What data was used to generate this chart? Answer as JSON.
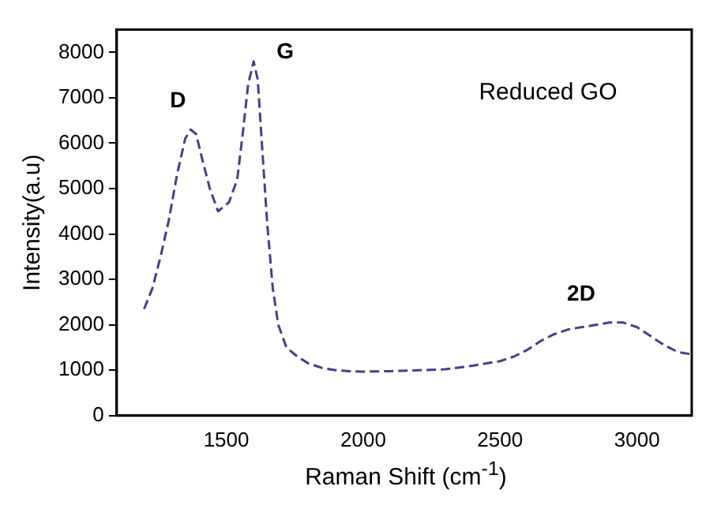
{
  "chart_data": {
    "type": "line",
    "xlabel": "Raman Shift (cm$^{-1}$)",
    "ylabel": "Intensity(a.u)",
    "x": [
      1200,
      1230,
      1260,
      1290,
      1320,
      1350,
      1370,
      1390,
      1410,
      1440,
      1470,
      1490,
      1510,
      1540,
      1560,
      1580,
      1600,
      1615,
      1630,
      1650,
      1670,
      1690,
      1720,
      1760,
      1800,
      1850,
      1900,
      1950,
      2000,
      2100,
      2200,
      2300,
      2400,
      2500,
      2550,
      2600,
      2650,
      2700,
      2750,
      2800,
      2850,
      2900,
      2950,
      3000,
      3050,
      3100,
      3150,
      3200
    ],
    "series": [
      {
        "color": "#4b3c8c",
        "values": [
          2350,
          2800,
          3500,
          4300,
          5300,
          6100,
          6300,
          6200,
          5700,
          5000,
          4500,
          4600,
          4700,
          5200,
          6200,
          7300,
          7800,
          7400,
          6000,
          4200,
          2800,
          2000,
          1500,
          1300,
          1150,
          1050,
          1000,
          980,
          970,
          980,
          1000,
          1020,
          1100,
          1200,
          1300,
          1450,
          1650,
          1800,
          1900,
          1950,
          2000,
          2050,
          2050,
          1950,
          1750,
          1550,
          1400,
          1350
        ]
      }
    ],
    "xlim": [
      1100,
      3200
    ],
    "xticks": [
      1500,
      2000,
      2500,
      3000
    ],
    "ylim": [
      0,
      8500
    ],
    "yticks": [
      0,
      1000,
      2000,
      3000,
      4000,
      5000,
      6000,
      7000,
      8000
    ],
    "grid": false,
    "legend": false,
    "marker": "none",
    "line_style": "dashed",
    "annotations": [
      "Reduced GO",
      {
        "text": "D",
        "x": 1370,
        "y": 6300
      },
      {
        "text": "G",
        "x": 1600,
        "y": 7800
      },
      {
        "text": "2D",
        "x": 2900,
        "y": 2050
      }
    ]
  }
}
